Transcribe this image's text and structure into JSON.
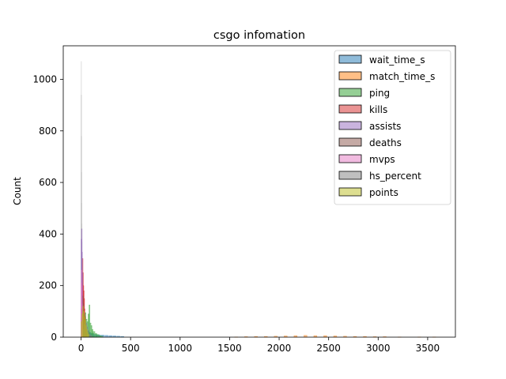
{
  "chart_data": {
    "type": "histogram",
    "title": "csgo infomation",
    "xlabel": "",
    "ylabel": "Count",
    "xlim": [
      -180,
      3780
    ],
    "ylim": [
      0,
      1130
    ],
    "xticks": [
      0,
      500,
      1000,
      1500,
      2000,
      2500,
      3000,
      3500
    ],
    "yticks": [
      0,
      200,
      400,
      600,
      800,
      1000
    ],
    "legend_position": "top-right",
    "series": [
      {
        "name": "wait_time_s",
        "color": "#1f77b4",
        "bins": [
          [
            0,
            75
          ],
          [
            20,
            45
          ],
          [
            40,
            30
          ],
          [
            60,
            22
          ],
          [
            80,
            18
          ],
          [
            100,
            14
          ],
          [
            130,
            10
          ],
          [
            160,
            9
          ],
          [
            200,
            8
          ],
          [
            240,
            7
          ],
          [
            280,
            6
          ],
          [
            320,
            5
          ],
          [
            360,
            4
          ],
          [
            400,
            3
          ]
        ]
      },
      {
        "name": "match_time_s",
        "color": "#ff7f0e",
        "bins": [
          [
            1550,
            1
          ],
          [
            1650,
            2
          ],
          [
            1750,
            3
          ],
          [
            1850,
            3
          ],
          [
            1950,
            4
          ],
          [
            2050,
            5
          ],
          [
            2150,
            6
          ],
          [
            2250,
            7
          ],
          [
            2350,
            6
          ],
          [
            2450,
            6
          ],
          [
            2550,
            5
          ],
          [
            2650,
            4
          ],
          [
            2750,
            3
          ],
          [
            2850,
            3
          ],
          [
            2950,
            2
          ],
          [
            3050,
            2
          ],
          [
            3200,
            1
          ],
          [
            3400,
            1
          ],
          [
            3550,
            1
          ]
        ]
      },
      {
        "name": "ping",
        "color": "#2ca02c",
        "bins": [
          [
            10,
            40
          ],
          [
            20,
            65
          ],
          [
            30,
            80
          ],
          [
            40,
            95
          ],
          [
            50,
            70
          ],
          [
            60,
            60
          ],
          [
            70,
            90
          ],
          [
            80,
            125
          ],
          [
            90,
            55
          ],
          [
            100,
            45
          ],
          [
            110,
            30
          ],
          [
            120,
            22
          ],
          [
            140,
            14
          ],
          [
            160,
            10
          ],
          [
            180,
            6
          ],
          [
            200,
            4
          ]
        ]
      },
      {
        "name": "kills",
        "color": "#d62728",
        "bins": [
          [
            0,
            110
          ],
          [
            4,
            160
          ],
          [
            8,
            210
          ],
          [
            12,
            305
          ],
          [
            16,
            250
          ],
          [
            20,
            200
          ],
          [
            24,
            180
          ],
          [
            28,
            150
          ],
          [
            32,
            110
          ],
          [
            36,
            80
          ],
          [
            40,
            50
          ],
          [
            44,
            30
          ],
          [
            48,
            15
          ]
        ]
      },
      {
        "name": "assists",
        "color": "#9467bd",
        "bins": [
          [
            0,
            380
          ],
          [
            3,
            420
          ],
          [
            6,
            330
          ],
          [
            9,
            250
          ],
          [
            12,
            150
          ],
          [
            15,
            80
          ],
          [
            18,
            40
          ]
        ]
      },
      {
        "name": "deaths",
        "color": "#8c564b",
        "bins": [
          [
            5,
            70
          ],
          [
            10,
            110
          ],
          [
            15,
            160
          ],
          [
            20,
            130
          ],
          [
            25,
            90
          ],
          [
            30,
            55
          ],
          [
            35,
            25
          ]
        ]
      },
      {
        "name": "mvps",
        "color": "#e377c2",
        "bins": [
          [
            0,
            210
          ],
          [
            2,
            260
          ],
          [
            4,
            200
          ],
          [
            6,
            130
          ],
          [
            8,
            60
          ]
        ]
      },
      {
        "name": "hs_percent",
        "color": "#7f7f7f",
        "bins": [
          [
            20,
            30
          ],
          [
            30,
            50
          ],
          [
            40,
            60
          ],
          [
            50,
            55
          ],
          [
            60,
            40
          ],
          [
            70,
            25
          ],
          [
            80,
            12
          ],
          [
            90,
            8
          ],
          [
            100,
            6
          ]
        ]
      },
      {
        "name": "points",
        "color": "#bcbd22",
        "bins": [
          [
            0,
            60
          ],
          [
            8,
            90
          ],
          [
            16,
            120
          ],
          [
            24,
            100
          ],
          [
            32,
            80
          ],
          [
            40,
            65
          ],
          [
            48,
            45
          ],
          [
            56,
            30
          ],
          [
            64,
            20
          ],
          [
            72,
            12
          ]
        ]
      }
    ],
    "background_spikes": {
      "color": "#bbbbbb",
      "bins": [
        [
          0,
          1070
        ],
        [
          1,
          940
        ],
        [
          2,
          780
        ],
        [
          3,
          640
        ],
        [
          4,
          520
        ],
        [
          5,
          440
        ],
        [
          6,
          370
        ],
        [
          8,
          300
        ]
      ]
    }
  }
}
